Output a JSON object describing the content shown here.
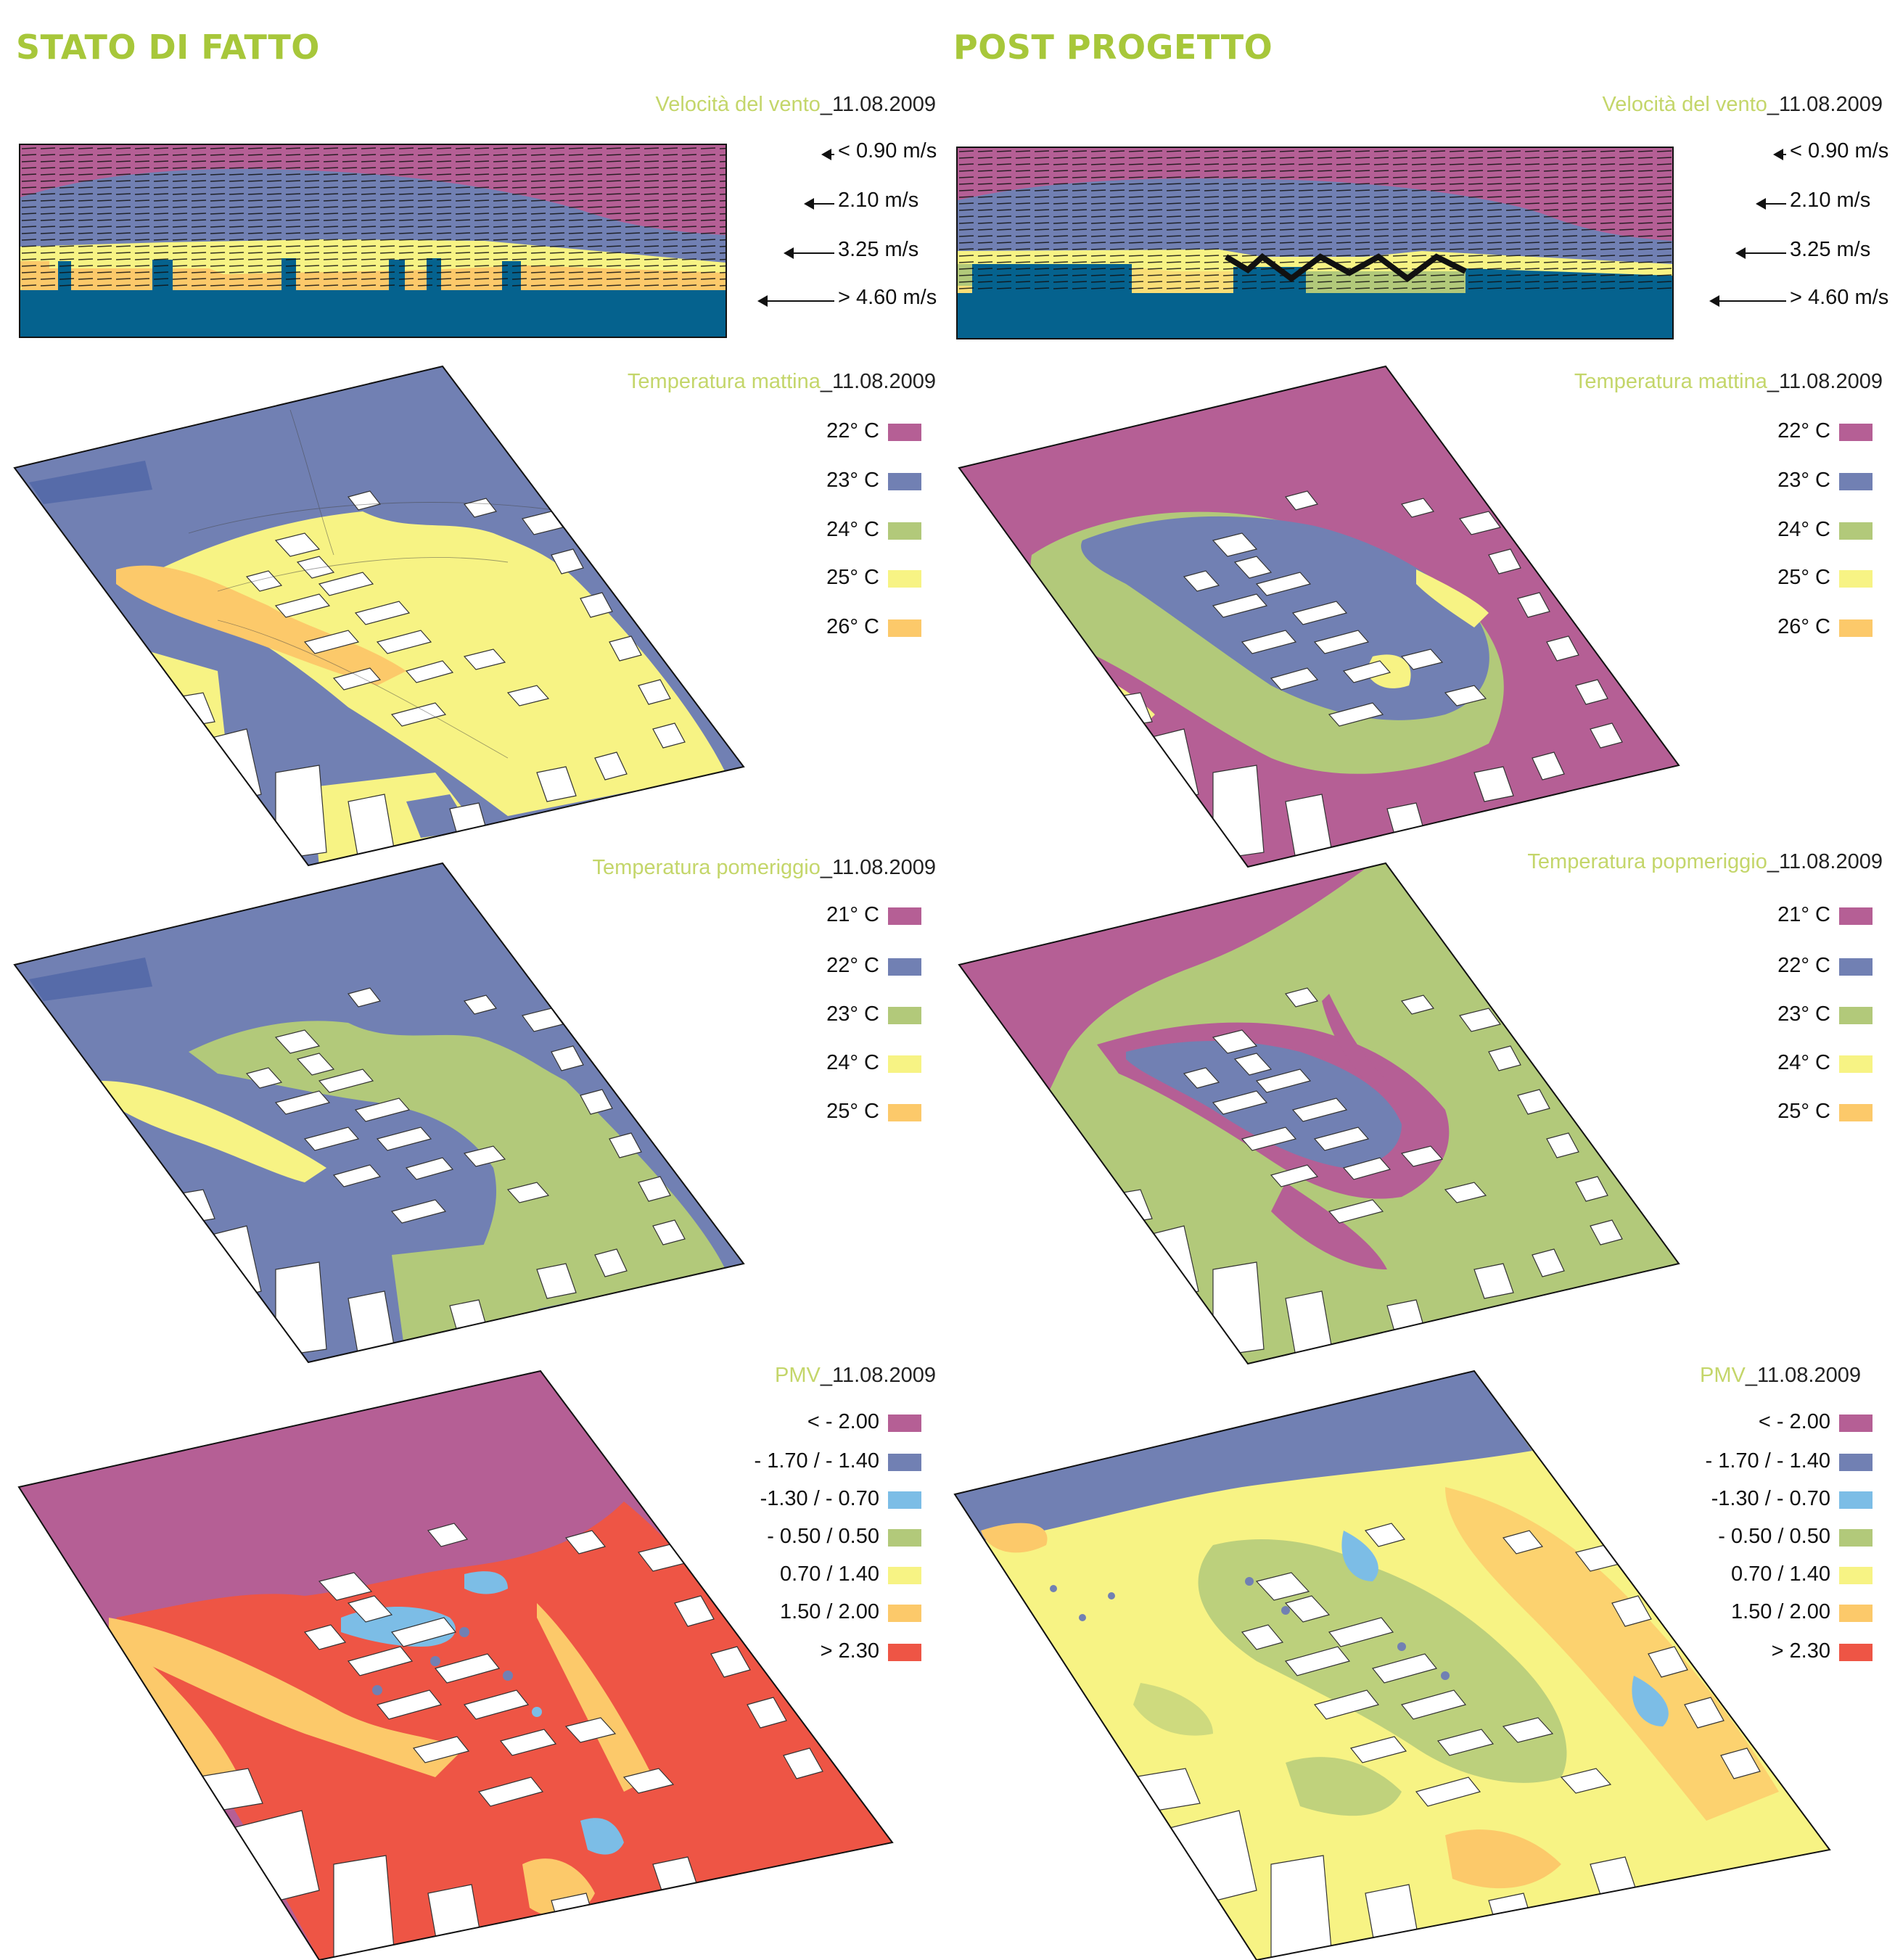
{
  "colors": {
    "magenta": "#b55f95",
    "blue": "#7180b3",
    "green": "#b2c97a",
    "yellow": "#f7f384",
    "orange": "#fcc96a",
    "red": "#ee5545",
    "lightblue": "#7cbde6",
    "deepblue": "#05628e",
    "heading": "#a7c73a",
    "title": "#c4d66a"
  },
  "left": {
    "heading": "STATO DI FATTO",
    "wind": {
      "title": "Velocità del vento",
      "date": "_11.08.2009",
      "legend": [
        "< 0.90 m/s",
        "2.10 m/s",
        "3.25 m/s",
        "> 4.60 m/s"
      ]
    },
    "morning": {
      "title": "Temperatura mattina",
      "date": "_11.08.2009",
      "legend": [
        "22° C",
        "23° C",
        "24° C",
        "25° C",
        "26° C"
      ]
    },
    "afternoon": {
      "title": "Temperatura pomeriggio",
      "date": "_11.08.2009",
      "legend": [
        "21° C",
        "22° C",
        "23° C",
        "24° C",
        "25° C"
      ]
    },
    "pmv": {
      "title": "PMV",
      "date": "_11.08.2009",
      "legend": [
        "< - 2.00",
        "- 1.70 / - 1.40",
        "-1.30 / - 0.70",
        "- 0.50 / 0.50",
        "0.70 / 1.40",
        "1.50 / 2.00",
        "> 2.30"
      ]
    }
  },
  "right": {
    "heading": "POST PROGETTO",
    "wind": {
      "title": "Velocità del vento",
      "date": "_11.08.2009",
      "legend": [
        "< 0.90 m/s",
        "2.10 m/s",
        "3.25 m/s",
        "> 4.60 m/s"
      ]
    },
    "morning": {
      "title": "Temperatura mattina",
      "date": "_11.08.2009",
      "legend": [
        "22° C",
        "23° C",
        "24° C",
        "25° C",
        "26° C"
      ]
    },
    "afternoon": {
      "title": "Temperatura popmeriggio",
      "date": "_11.08.2009",
      "legend": [
        "21° C",
        "22° C",
        "23° C",
        "24° C",
        "25° C"
      ]
    },
    "pmv": {
      "title": "PMV",
      "date": "_11.08.2009",
      "legend": [
        "< - 2.00",
        "- 1.70 / - 1.40",
        "-1.30 / - 0.70",
        "- 0.50 / 0.50",
        "0.70 / 1.40",
        "1.50 / 2.00",
        "> 2.30"
      ]
    }
  }
}
